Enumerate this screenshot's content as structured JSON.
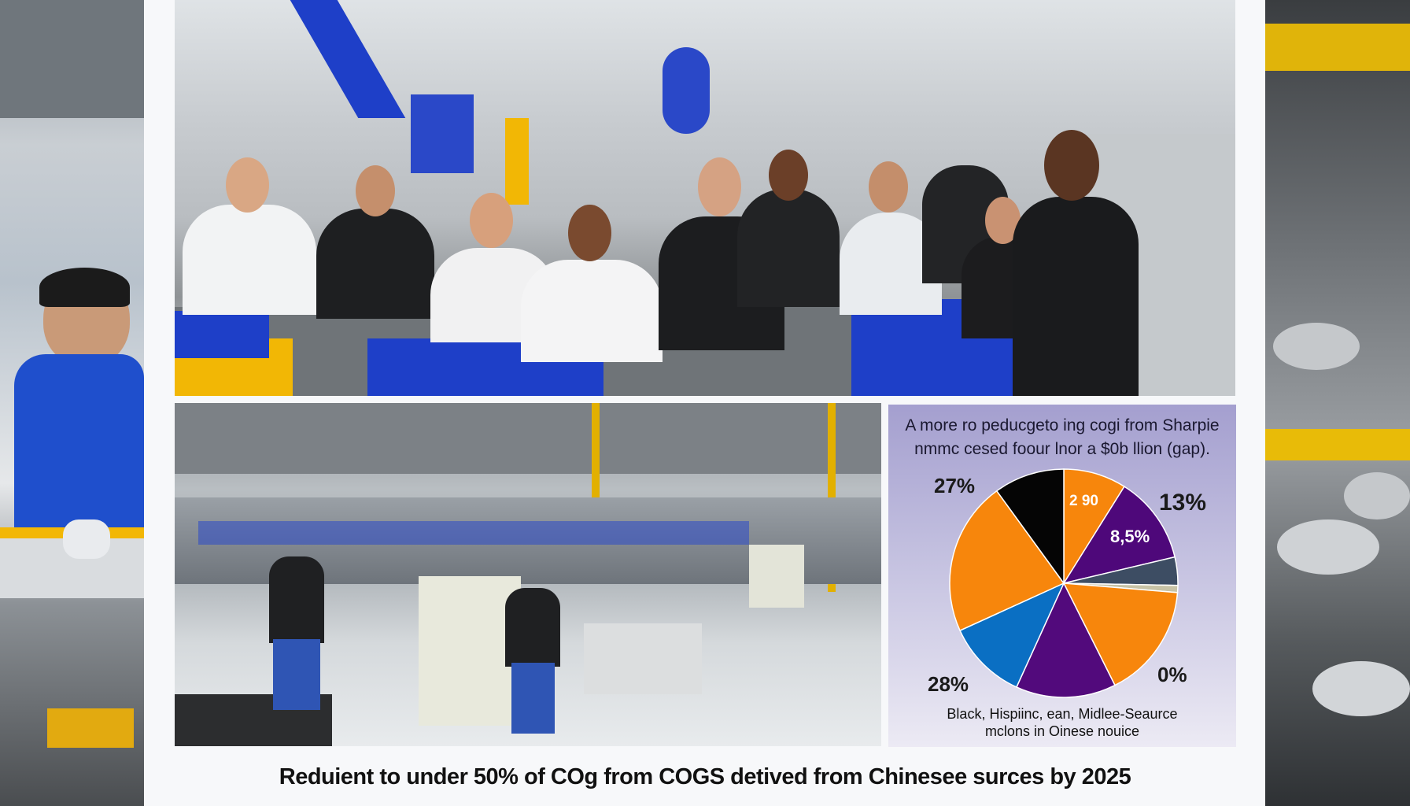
{
  "caption": "Reduient to under 50% of COg from COGS detived from Chinesee surces by 2025",
  "chart_data": {
    "type": "pie",
    "title_lines": [
      "A more ro peducgeto ing cogi from Sharpie",
      "nmmc cesed foour lnor a $0b llion (gap)."
    ],
    "legend_lines": [
      "Black, Hispiinc, ean, Midlee-Seaurce",
      "mclons in Oinese nouice"
    ],
    "labels": {
      "top_left": "27%",
      "top_inner": "2 90",
      "top_right": "13%",
      "right_inner": "8,5%",
      "bottom_left": "28%",
      "bottom_right": "0%"
    },
    "slices": [
      {
        "value": 8.9,
        "color": "#f7860c"
      },
      {
        "value": 12.4,
        "color": "#4e087a"
      },
      {
        "value": 4.0,
        "color": "#3d4d63"
      },
      {
        "value": 1.0,
        "color": "#c8c3a6"
      },
      {
        "value": 16.3,
        "color": "#f7860c"
      },
      {
        "value": 14.2,
        "color": "#520a7c"
      },
      {
        "value": 11.4,
        "color": "#0a6fc3"
      },
      {
        "value": 21.8,
        "color": "#f7860c"
      },
      {
        "value": 10.0,
        "color": "#050505"
      }
    ]
  },
  "colors": {
    "accent_blue": "#1e3fc8",
    "safety_yellow": "#f2b705",
    "background": "#f7f8fa"
  }
}
